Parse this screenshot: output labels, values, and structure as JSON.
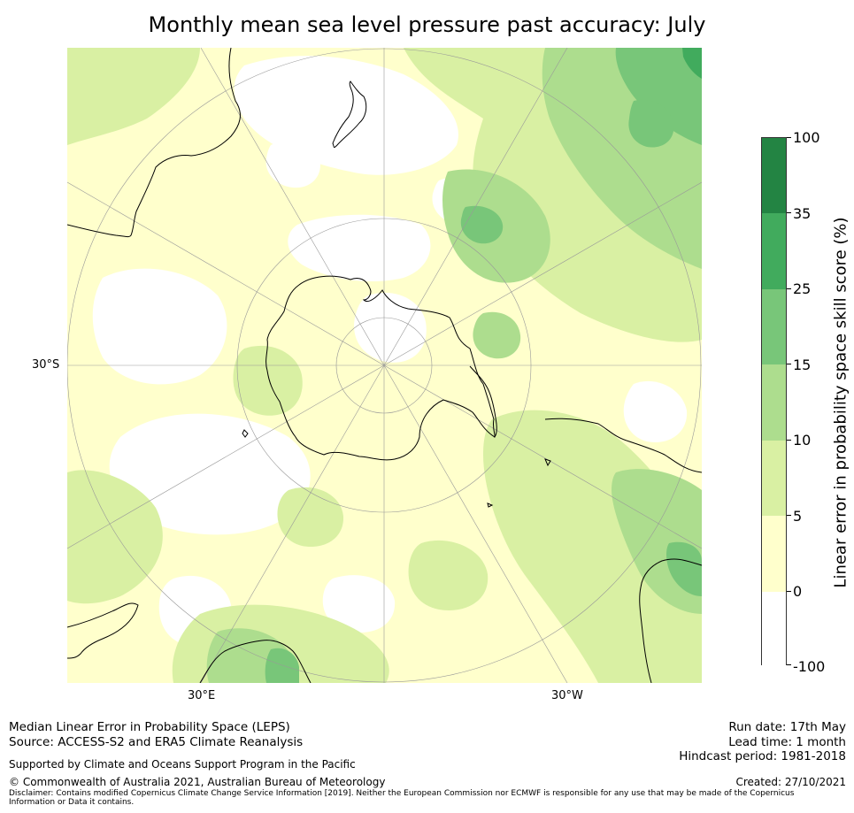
{
  "title": "Monthly mean sea level pressure past accuracy: July",
  "map": {
    "projection": "south-polar-stereographic",
    "lat_labels": [
      "30°S"
    ],
    "lon_labels": [
      "30°E",
      "30°W"
    ],
    "colors": {
      "coastline": "#000000",
      "gridline": "#999999",
      "ocean_base": "#ffffcc"
    }
  },
  "colorbar": {
    "label": "Linear error in probability space skill score (%)",
    "ticks": [
      "100",
      "35",
      "25",
      "15",
      "10",
      "5",
      "0",
      "-100"
    ],
    "bins": [
      {
        "range": "-100 to 0",
        "color": "#ffffff"
      },
      {
        "range": "0 to 5",
        "color": "#ffffcc"
      },
      {
        "range": "5 to 10",
        "color": "#d9f0a3"
      },
      {
        "range": "10 to 15",
        "color": "#addd8e"
      },
      {
        "range": "15 to 25",
        "color": "#78c679"
      },
      {
        "range": "25 to 35",
        "color": "#41ab5d"
      },
      {
        "range": "35 to 100",
        "color": "#238443"
      }
    ]
  },
  "footer": {
    "method": "Median Linear Error in Probability Space (LEPS)",
    "source": "Source: ACCESS-S2 and ERA5 Climate Reanalysis",
    "support": "Supported by Climate and Oceans Support Program in the Pacific",
    "copyright": "© Commonwealth of Australia 2021, Australian Bureau of Meteorology",
    "disclaimer": "Disclaimer: Contains modified Copernicus Climate Change Service Information [2019]. Neither the European Commission nor ECMWF is responsible for any use that may be made of the Copernicus Information or Data it contains.",
    "run_date": "Run date: 17th May",
    "lead_time": "Lead time: 1 month",
    "hindcast": "Hindcast period: 1981-2018",
    "created": "Created: 27/10/2021"
  }
}
